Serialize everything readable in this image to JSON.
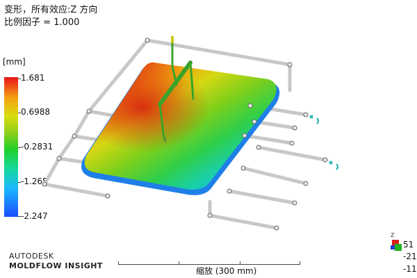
{
  "header": {
    "line1": "变形，所有效应:Z 方向",
    "line2": "比例因子 = 1.000"
  },
  "legend": {
    "unit": "[mm]",
    "labels": [
      "1.681",
      "0.6988",
      "-0.2831",
      "-1.265",
      "-2.247"
    ]
  },
  "branding": {
    "line1": "AUTODESK",
    "line2": "MOLDFLOW INSIGHT"
  },
  "scale": {
    "label": "缩放 (300 mm)"
  },
  "triad": {
    "axis_label": "Z",
    "values": [
      "51",
      "-21",
      "-11"
    ]
  },
  "colors": {
    "max": "#e8141a",
    "min": "#1a4dff",
    "frame": "#c8c8c8",
    "runner": "#3aa32a"
  }
}
